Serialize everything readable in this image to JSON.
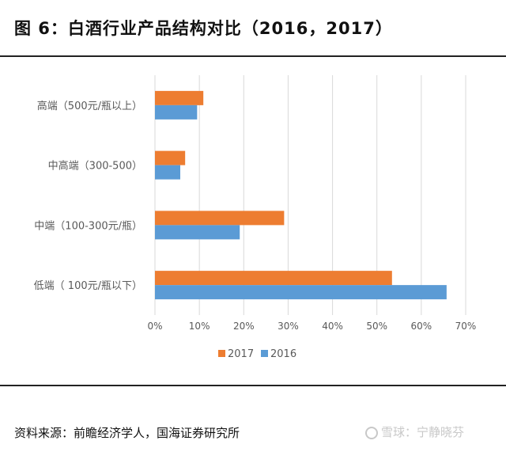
{
  "figure": {
    "title": "图 6：白酒行业产品结构对比（2016，2017）",
    "source": "资料来源：前瞻经济学人，国海证券研究所",
    "watermark": "雪球：宁静晓芬"
  },
  "colors": {
    "2017": "#ED7D31",
    "2016": "#5B9BD5",
    "grid": "#D9D9D9",
    "text": "#595959"
  },
  "chart_data": {
    "type": "bar",
    "orientation": "horizontal",
    "title": "白酒行业产品结构对比（2016，2017）",
    "categories": [
      "高端（500元/瓶以上）",
      "中高端（300-500）",
      "中端（100-300元/瓶）",
      "低端（ 100元/瓶以下）"
    ],
    "series": [
      {
        "name": "2017",
        "values": [
          10.9,
          6.8,
          29.1,
          53.4
        ]
      },
      {
        "name": "2016",
        "values": [
          9.5,
          5.7,
          19.1,
          65.7
        ]
      }
    ],
    "xlim": [
      0,
      70
    ],
    "x_ticks": [
      "0%",
      "10%",
      "20%",
      "30%",
      "40%",
      "50%",
      "60%",
      "70%"
    ],
    "x_tick_values": [
      0,
      10,
      20,
      30,
      40,
      50,
      60,
      70
    ],
    "grid": true,
    "legend": [
      "2017",
      "2016"
    ],
    "legend_position": "bottom",
    "xlabel": "",
    "ylabel": ""
  }
}
